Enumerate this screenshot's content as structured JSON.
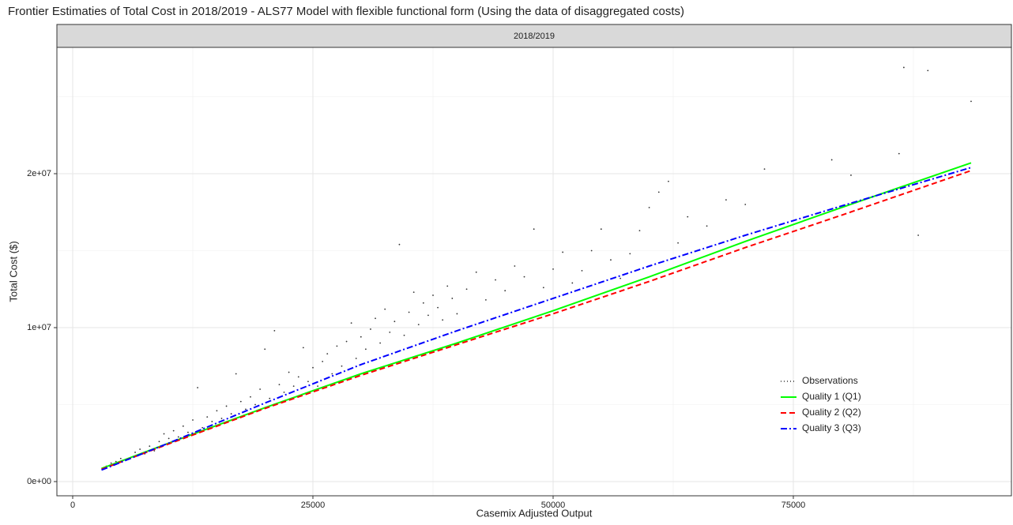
{
  "chart_data": {
    "type": "scatter-line",
    "title": "Frontier Estimaties of Total Cost in 2018/2019 - ALS77 Model with flexible functional form (Using the data of disaggregated costs)",
    "facet_label": "2018/2019",
    "x_label": "Casemix Adjusted Output",
    "y_label": "Total Cost ($)",
    "xlim": [
      -1645,
      97697
    ],
    "ylim": [
      -923000,
      28205000
    ],
    "xticks": [
      0,
      25000,
      50000,
      75000
    ],
    "xminorticks": [
      12500,
      37500,
      62500,
      87500
    ],
    "yticks": [
      {
        "value": 0,
        "label": "0e+00"
      },
      {
        "value": 10000000,
        "label": "1e+07"
      },
      {
        "value": 20000000,
        "label": "2e+07"
      }
    ],
    "yminorticks": [
      5000000,
      15000000,
      25000000
    ],
    "grid": true,
    "legend_position": "bottom-right",
    "series": [
      {
        "name": "Observations",
        "kind": "points",
        "color": "#333333",
        "dash": "dotted",
        "x": [
          3500,
          4000,
          4500,
          5000,
          5500,
          6500,
          7000,
          7500,
          8000,
          8500,
          9000,
          9500,
          10000,
          10500,
          11000,
          11500,
          12000,
          12500,
          13000,
          13500,
          14000,
          14500,
          15000,
          15500,
          16000,
          16500,
          17000,
          17500,
          18000,
          18500,
          19000,
          19500,
          20000,
          20500,
          21000,
          21500,
          22000,
          22500,
          23000,
          23500,
          24000,
          24500,
          25000,
          25500,
          26000,
          26500,
          27000,
          27500,
          28000,
          28500,
          29000,
          29500,
          30000,
          30500,
          31000,
          31500,
          32000,
          32500,
          33000,
          33500,
          34000,
          34500,
          35000,
          35500,
          36000,
          36500,
          37000,
          37500,
          38000,
          38500,
          39000,
          39500,
          40000,
          41000,
          42000,
          43000,
          44000,
          45000,
          46000,
          47000,
          48000,
          49000,
          50000,
          51000,
          52000,
          53000,
          54000,
          55000,
          56000,
          57000,
          58000,
          59000,
          60000,
          61000,
          62000,
          63000,
          64000,
          66000,
          68000,
          70000,
          72000,
          79000,
          81000,
          86000,
          86500,
          88000,
          89000,
          93500
        ],
        "values": [
          1000000,
          1200000,
          1300000,
          1500000,
          1400000,
          1900000,
          2100000,
          1800000,
          2300000,
          2000000,
          2600000,
          3100000,
          2800000,
          3300000,
          2900000,
          3600000,
          3200000,
          4000000,
          6100000,
          3500000,
          4200000,
          3900000,
          4600000,
          4100000,
          4900000,
          4400000,
          7000000,
          5200000,
          4700000,
          5500000,
          5000000,
          6000000,
          8600000,
          5400000,
          9800000,
          6300000,
          5800000,
          7100000,
          6200000,
          6800000,
          8700000,
          6500000,
          7400000,
          6200000,
          7800000,
          8300000,
          7000000,
          8800000,
          7500000,
          9100000,
          10300000,
          8000000,
          9400000,
          8600000,
          9900000,
          10600000,
          9000000,
          11200000,
          9700000,
          10400000,
          15400000,
          9500000,
          11000000,
          12300000,
          10200000,
          11600000,
          10800000,
          12100000,
          11300000,
          10500000,
          12700000,
          11900000,
          10900000,
          12500000,
          13600000,
          11800000,
          13100000,
          12400000,
          14000000,
          13300000,
          16400000,
          12600000,
          13800000,
          14900000,
          12900000,
          13700000,
          15000000,
          16400000,
          14400000,
          13200000,
          14800000,
          16300000,
          17800000,
          18800000,
          19500000,
          15500000,
          17200000,
          16600000,
          18300000,
          18000000,
          20300000,
          20900000,
          19900000,
          21300000,
          26900000,
          16000000,
          26700000,
          24700000
        ]
      },
      {
        "name": "Quality 1 (Q1)",
        "kind": "line",
        "color": "#00ff00",
        "dash": "solid",
        "x": [
          3000,
          10000,
          20000,
          30000,
          40000,
          50000,
          60000,
          70000,
          80000,
          93500
        ],
        "values": [
          850000,
          2500000,
          4800000,
          7000000,
          9000000,
          11100000,
          13300000,
          15600000,
          17800000,
          20700000
        ]
      },
      {
        "name": "Quality 2 (Q2)",
        "kind": "line",
        "color": "#ff0000",
        "dash": "dashed",
        "x": [
          3000,
          10000,
          20000,
          30000,
          40000,
          50000,
          60000,
          70000,
          80000,
          93500
        ],
        "values": [
          800000,
          2450000,
          4750000,
          6900000,
          8900000,
          10900000,
          13000000,
          15200000,
          17300000,
          20200000
        ]
      },
      {
        "name": "Quality 3 (Q3)",
        "kind": "line",
        "color": "#0000ff",
        "dash": "dotdash",
        "x": [
          3000,
          10000,
          20000,
          30000,
          40000,
          50000,
          60000,
          70000,
          80000,
          93500
        ],
        "values": [
          750000,
          2500000,
          5100000,
          7600000,
          9800000,
          11900000,
          14000000,
          16000000,
          17900000,
          20400000
        ]
      }
    ]
  }
}
